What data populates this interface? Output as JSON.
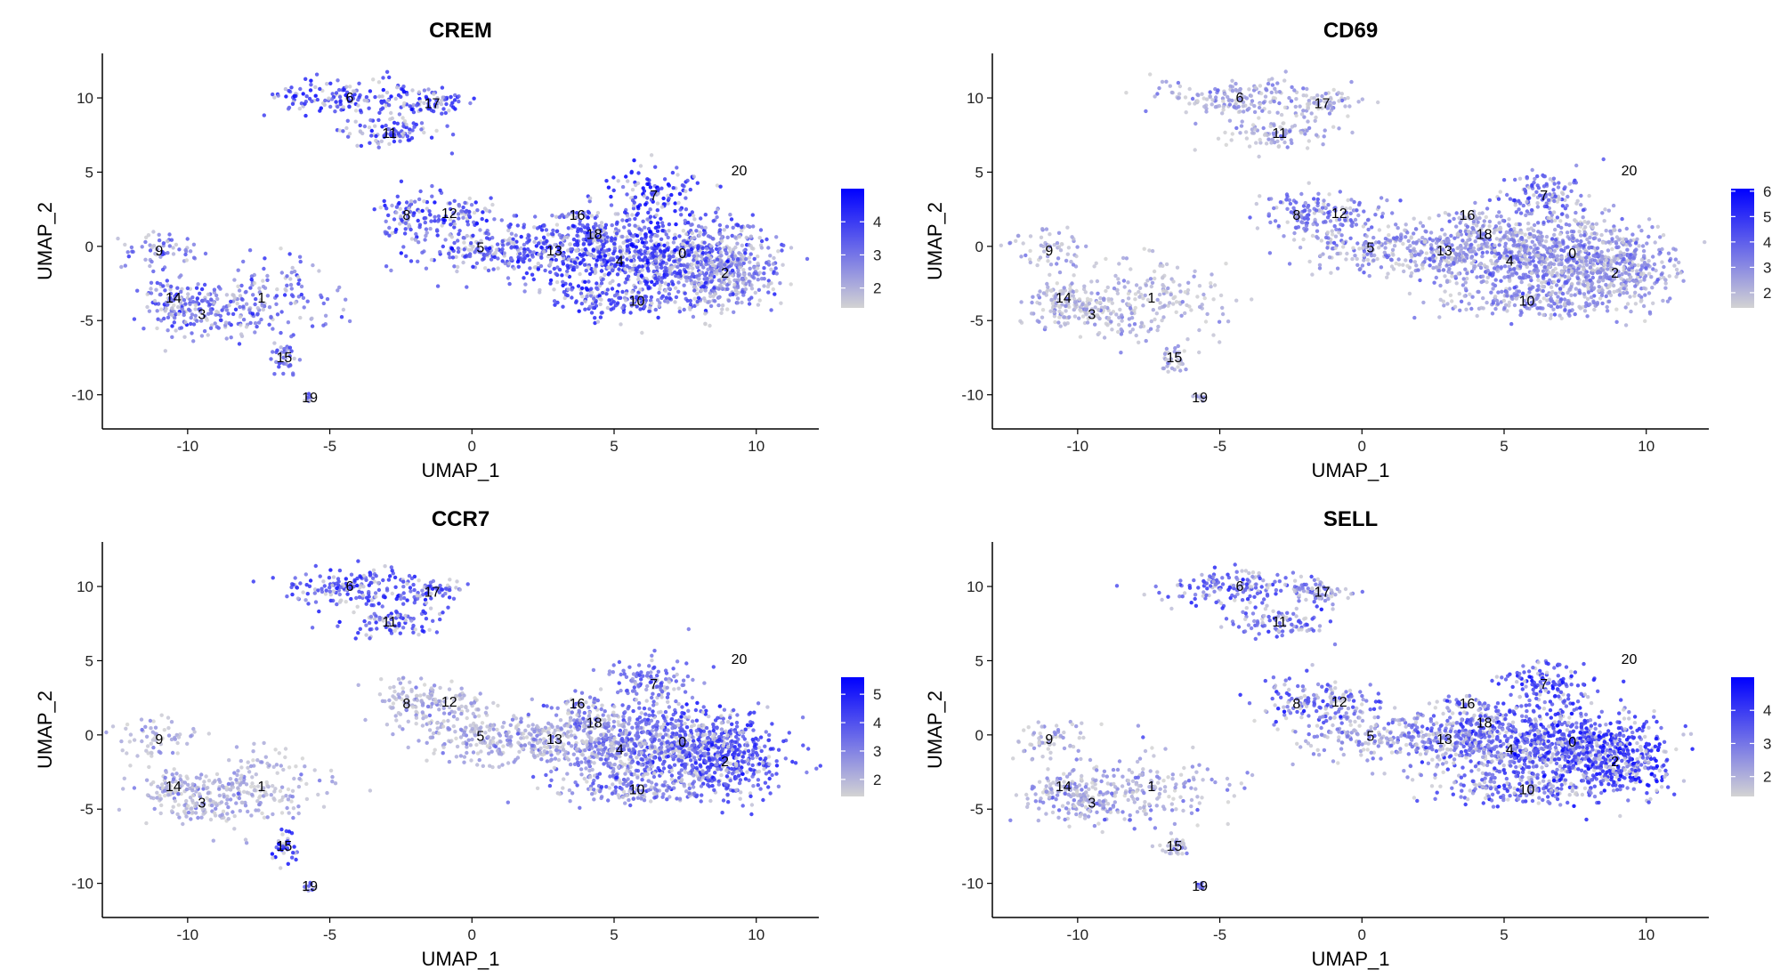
{
  "chart_data": [
    {
      "type": "scatter",
      "title": "CREM",
      "xlabel": "UMAP_1",
      "ylabel": "UMAP_2",
      "xlim": [
        -13,
        12.2
      ],
      "ylim": [
        -12.3,
        13
      ],
      "x_ticks": [
        -10,
        -5,
        0,
        5,
        10
      ],
      "y_ticks": [
        -10,
        -5,
        0,
        5,
        10
      ],
      "grid": false,
      "legend_position": "right",
      "colorscale": {
        "low": "#d3d3d3",
        "high": "#0000ff",
        "min": 1.4,
        "max": 5.0,
        "ticks": [
          2,
          3,
          4
        ]
      },
      "cluster_labels": [
        {
          "label": "0",
          "x": 7.4,
          "y": -0.5
        },
        {
          "label": "1",
          "x": -7.4,
          "y": -3.5
        },
        {
          "label": "2",
          "x": 8.9,
          "y": -1.8
        },
        {
          "label": "3",
          "x": -9.5,
          "y": -4.6
        },
        {
          "label": "4",
          "x": 5.2,
          "y": -1.0
        },
        {
          "label": "5",
          "x": 0.3,
          "y": -0.1
        },
        {
          "label": "6",
          "x": -4.3,
          "y": 10.0
        },
        {
          "label": "7",
          "x": 6.4,
          "y": 3.4
        },
        {
          "label": "8",
          "x": -2.3,
          "y": 2.1
        },
        {
          "label": "9",
          "x": -11.0,
          "y": -0.3
        },
        {
          "label": "10",
          "x": 5.8,
          "y": -3.7
        },
        {
          "label": "11",
          "x": -2.9,
          "y": 7.6
        },
        {
          "label": "12",
          "x": -0.8,
          "y": 2.2
        },
        {
          "label": "13",
          "x": 2.9,
          "y": -0.3
        },
        {
          "label": "14",
          "x": -10.5,
          "y": -3.5
        },
        {
          "label": "15",
          "x": -6.6,
          "y": -7.5
        },
        {
          "label": "16",
          "x": 3.7,
          "y": 2.1
        },
        {
          "label": "17",
          "x": -1.4,
          "y": 9.6
        },
        {
          "label": "18",
          "x": 4.3,
          "y": 0.8
        },
        {
          "label": "19",
          "x": -5.7,
          "y": -10.2
        },
        {
          "label": "20",
          "x": 9.4,
          "y": 5.1
        }
      ],
      "expression_by_cluster": {
        "0": 3.6,
        "1": 3.2,
        "2": 2.9,
        "3": 3.4,
        "4": 4.1,
        "5": 3.6,
        "6": 4.0,
        "7": 4.1,
        "8": 3.8,
        "9": 3.0,
        "10": 3.8,
        "11": 3.9,
        "12": 3.8,
        "13": 3.8,
        "14": 3.4,
        "15": 3.3,
        "16": 3.0,
        "17": 3.9,
        "18": 3.9,
        "19": 3.0,
        "20": 3.0
      }
    },
    {
      "type": "scatter",
      "title": "CD69",
      "xlabel": "UMAP_1",
      "ylabel": "UMAP_2",
      "xlim": [
        -13,
        12.2
      ],
      "ylim": [
        -12.3,
        13
      ],
      "x_ticks": [
        -10,
        -5,
        0,
        5,
        10
      ],
      "y_ticks": [
        -10,
        -5,
        0,
        5,
        10
      ],
      "grid": false,
      "legend_position": "right",
      "colorscale": {
        "low": "#d3d3d3",
        "high": "#0000ff",
        "min": 1.4,
        "max": 6.1,
        "ticks": [
          2,
          3,
          4,
          5,
          6
        ]
      },
      "cluster_labels": [
        {
          "label": "0",
          "x": 7.4,
          "y": -0.5
        },
        {
          "label": "1",
          "x": -7.4,
          "y": -3.5
        },
        {
          "label": "2",
          "x": 8.9,
          "y": -1.8
        },
        {
          "label": "3",
          "x": -9.5,
          "y": -4.6
        },
        {
          "label": "4",
          "x": 5.2,
          "y": -1.0
        },
        {
          "label": "5",
          "x": 0.3,
          "y": -0.1
        },
        {
          "label": "6",
          "x": -4.3,
          "y": 10.0
        },
        {
          "label": "7",
          "x": 6.4,
          "y": 3.4
        },
        {
          "label": "8",
          "x": -2.3,
          "y": 2.1
        },
        {
          "label": "9",
          "x": -11.0,
          "y": -0.3
        },
        {
          "label": "10",
          "x": 5.8,
          "y": -3.7
        },
        {
          "label": "11",
          "x": -2.9,
          "y": 7.6
        },
        {
          "label": "12",
          "x": -0.8,
          "y": 2.2
        },
        {
          "label": "13",
          "x": 2.9,
          "y": -0.3
        },
        {
          "label": "14",
          "x": -10.5,
          "y": -3.5
        },
        {
          "label": "15",
          "x": -6.6,
          "y": -7.5
        },
        {
          "label": "16",
          "x": 3.7,
          "y": 2.1
        },
        {
          "label": "17",
          "x": -1.4,
          "y": 9.6
        },
        {
          "label": "18",
          "x": 4.3,
          "y": 0.8
        },
        {
          "label": "19",
          "x": -5.7,
          "y": -10.2
        },
        {
          "label": "20",
          "x": 9.4,
          "y": 5.1
        }
      ],
      "expression_by_cluster": {
        "0": 3.0,
        "1": 2.2,
        "2": 2.9,
        "3": 2.3,
        "4": 3.4,
        "5": 3.2,
        "6": 2.6,
        "7": 3.9,
        "8": 3.6,
        "9": 2.5,
        "10": 3.1,
        "11": 2.6,
        "12": 3.6,
        "13": 3.1,
        "14": 2.3,
        "15": 2.4,
        "16": 2.5,
        "17": 2.6,
        "18": 3.2,
        "19": 2.4,
        "20": 2.4
      }
    },
    {
      "type": "scatter",
      "title": "CCR7",
      "xlabel": "UMAP_1",
      "ylabel": "UMAP_2",
      "xlim": [
        -13,
        12.2
      ],
      "ylim": [
        -12.3,
        13
      ],
      "x_ticks": [
        -10,
        -5,
        0,
        5,
        10
      ],
      "y_ticks": [
        -10,
        -5,
        0,
        5,
        10
      ],
      "grid": false,
      "legend_position": "right",
      "colorscale": {
        "low": "#d3d3d3",
        "high": "#0000ff",
        "min": 1.4,
        "max": 5.6,
        "ticks": [
          2,
          3,
          4,
          5
        ]
      },
      "cluster_labels": [
        {
          "label": "0",
          "x": 7.4,
          "y": -0.5
        },
        {
          "label": "1",
          "x": -7.4,
          "y": -3.5
        },
        {
          "label": "2",
          "x": 8.9,
          "y": -1.8
        },
        {
          "label": "3",
          "x": -9.5,
          "y": -4.6
        },
        {
          "label": "4",
          "x": 5.2,
          "y": -1.0
        },
        {
          "label": "5",
          "x": 0.3,
          "y": -0.1
        },
        {
          "label": "6",
          "x": -4.3,
          "y": 10.0
        },
        {
          "label": "7",
          "x": 6.4,
          "y": 3.4
        },
        {
          "label": "8",
          "x": -2.3,
          "y": 2.1
        },
        {
          "label": "9",
          "x": -11.0,
          "y": -0.3
        },
        {
          "label": "10",
          "x": 5.8,
          "y": -3.7
        },
        {
          "label": "11",
          "x": -2.9,
          "y": 7.6
        },
        {
          "label": "12",
          "x": -0.8,
          "y": 2.2
        },
        {
          "label": "13",
          "x": 2.9,
          "y": -0.3
        },
        {
          "label": "14",
          "x": -10.5,
          "y": -3.5
        },
        {
          "label": "15",
          "x": -6.6,
          "y": -7.5
        },
        {
          "label": "16",
          "x": 3.7,
          "y": 2.1
        },
        {
          "label": "17",
          "x": -1.4,
          "y": 9.6
        },
        {
          "label": "18",
          "x": 4.3,
          "y": 0.8
        },
        {
          "label": "19",
          "x": -5.7,
          "y": -10.2
        },
        {
          "label": "20",
          "x": 9.4,
          "y": 5.1
        }
      ],
      "expression_by_cluster": {
        "0": 4.0,
        "1": 2.2,
        "2": 4.4,
        "3": 2.3,
        "4": 3.3,
        "5": 2.4,
        "6": 4.4,
        "7": 3.5,
        "8": 2.3,
        "9": 2.1,
        "10": 3.3,
        "11": 4.2,
        "12": 2.3,
        "13": 2.7,
        "14": 2.2,
        "15": 4.8,
        "16": 3.4,
        "17": 4.2,
        "18": 3.2,
        "19": 3.8,
        "20": 3.0
      }
    },
    {
      "type": "scatter",
      "title": "SELL",
      "xlabel": "UMAP_1",
      "ylabel": "UMAP_2",
      "xlim": [
        -13,
        12.2
      ],
      "ylim": [
        -12.3,
        13
      ],
      "x_ticks": [
        -10,
        -5,
        0,
        5,
        10
      ],
      "y_ticks": [
        -10,
        -5,
        0,
        5,
        10
      ],
      "grid": false,
      "legend_position": "right",
      "colorscale": {
        "low": "#d3d3d3",
        "high": "#0000ff",
        "min": 1.4,
        "max": 5.0,
        "ticks": [
          2,
          3,
          4
        ]
      },
      "cluster_labels": [
        {
          "label": "0",
          "x": 7.4,
          "y": -0.5
        },
        {
          "label": "1",
          "x": -7.4,
          "y": -3.5
        },
        {
          "label": "2",
          "x": 8.9,
          "y": -1.8
        },
        {
          "label": "3",
          "x": -9.5,
          "y": -4.6
        },
        {
          "label": "4",
          "x": 5.2,
          "y": -1.0
        },
        {
          "label": "5",
          "x": 0.3,
          "y": -0.1
        },
        {
          "label": "6",
          "x": -4.3,
          "y": 10.0
        },
        {
          "label": "7",
          "x": 6.4,
          "y": 3.4
        },
        {
          "label": "8",
          "x": -2.3,
          "y": 2.1
        },
        {
          "label": "9",
          "x": -11.0,
          "y": -0.3
        },
        {
          "label": "10",
          "x": 5.8,
          "y": -3.7
        },
        {
          "label": "11",
          "x": -2.9,
          "y": 7.6
        },
        {
          "label": "12",
          "x": -0.8,
          "y": 2.2
        },
        {
          "label": "13",
          "x": 2.9,
          "y": -0.3
        },
        {
          "label": "14",
          "x": -10.5,
          "y": -3.5
        },
        {
          "label": "15",
          "x": -6.6,
          "y": -7.5
        },
        {
          "label": "16",
          "x": 3.7,
          "y": 2.1
        },
        {
          "label": "17",
          "x": -1.4,
          "y": 9.6
        },
        {
          "label": "18",
          "x": 4.3,
          "y": 0.8
        },
        {
          "label": "19",
          "x": -5.7,
          "y": -10.2
        },
        {
          "label": "20",
          "x": 9.4,
          "y": 5.1
        }
      ],
      "expression_by_cluster": {
        "0": 3.9,
        "1": 2.3,
        "2": 4.2,
        "3": 2.3,
        "4": 3.6,
        "5": 2.6,
        "6": 3.4,
        "7": 3.9,
        "8": 3.5,
        "9": 2.2,
        "10": 3.4,
        "11": 3.3,
        "12": 3.3,
        "13": 3.0,
        "14": 2.3,
        "15": 2.2,
        "16": 3.4,
        "17": 2.6,
        "18": 3.4,
        "19": 3.2,
        "20": 3.0
      }
    }
  ]
}
